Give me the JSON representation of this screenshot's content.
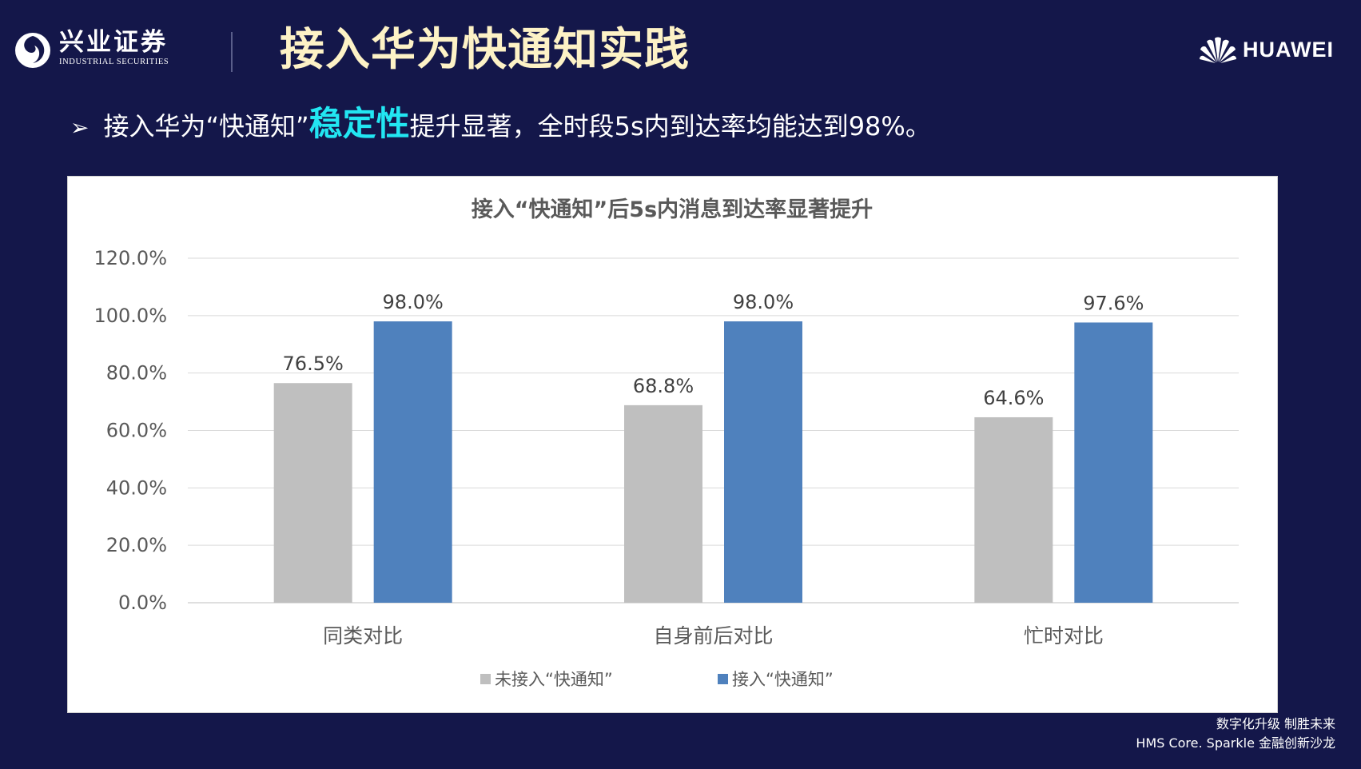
{
  "header": {
    "brand_cn": "兴业证券",
    "brand_en": "INDUSTRIAL SECURITIES",
    "title": "接入华为快通知实践",
    "partner_logo_text": "HUAWEI"
  },
  "bullet": {
    "prefix": "接入华为“快通知”",
    "highlight": "稳定性",
    "suffix": "提升显著，全时段5s内到达率均能达到98%。"
  },
  "colors": {
    "background": "#14174a",
    "title": "#fdf2c6",
    "highlight": "#22e6f2",
    "series_without": "#bfbfbf",
    "series_with": "#4f81bd"
  },
  "chart_data": {
    "type": "bar",
    "title": "接入“快通知”后5s内消息到达率显著提升",
    "categories": [
      "同类对比",
      "自身前后对比",
      "忙时对比"
    ],
    "series": [
      {
        "name": "未接入“快通知”",
        "values": [
          76.5,
          68.8,
          64.6
        ],
        "labels": [
          "76.5%",
          "68.8%",
          "64.6%"
        ]
      },
      {
        "name": "接入“快通知”",
        "values": [
          98.0,
          98.0,
          97.6
        ],
        "labels": [
          "98.0%",
          "98.0%",
          "97.6%"
        ]
      }
    ],
    "ylim": [
      0,
      120
    ],
    "yticks": [
      "0.0%",
      "20.0%",
      "40.0%",
      "60.0%",
      "80.0%",
      "100.0%",
      "120.0%"
    ],
    "grid": true,
    "legend": "bottom"
  },
  "footer": {
    "line1": "数字化升级 制胜未来",
    "line2": "HMS Core. Sparkle 金融创新沙龙"
  }
}
